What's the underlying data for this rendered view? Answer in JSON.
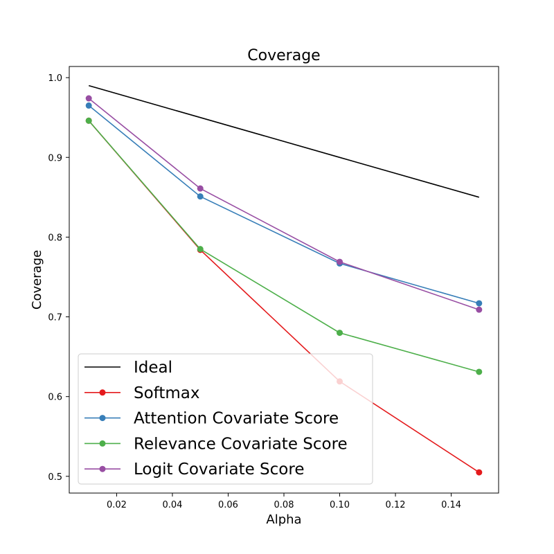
{
  "chart_data": {
    "type": "line",
    "title": "Coverage",
    "xlabel": "Alpha",
    "ylabel": "Coverage",
    "xlim": [
      0.003,
      0.157
    ],
    "ylim": [
      0.479,
      1.014
    ],
    "xticks": [
      0.02,
      0.04,
      0.06,
      0.08,
      0.1,
      0.12,
      0.14
    ],
    "xtick_labels": [
      "0.02",
      "0.04",
      "0.06",
      "0.08",
      "0.10",
      "0.12",
      "0.14"
    ],
    "yticks": [
      0.5,
      0.6,
      0.7,
      0.8,
      0.9,
      1.0
    ],
    "ytick_labels": [
      "0.5",
      "0.6",
      "0.7",
      "0.8",
      "0.9",
      "1.0"
    ],
    "grid": false,
    "legend_position": "lower-left",
    "x": [
      0.01,
      0.05,
      0.1,
      0.15
    ],
    "series": [
      {
        "name": "Ideal",
        "values": [
          0.99,
          0.95,
          0.9,
          0.85
        ],
        "color": "#000000",
        "markers": false
      },
      {
        "name": "Softmax",
        "values": [
          0.946,
          0.784,
          0.619,
          0.505
        ],
        "color": "#e41a1c",
        "markers": true
      },
      {
        "name": "Attention Covariate Score",
        "values": [
          0.965,
          0.851,
          0.767,
          0.717
        ],
        "color": "#377eb8",
        "markers": true
      },
      {
        "name": "Relevance Covariate Score",
        "values": [
          0.946,
          0.785,
          0.68,
          0.631
        ],
        "color": "#4daf4a",
        "markers": true
      },
      {
        "name": "Logit Covariate Score",
        "values": [
          0.974,
          0.861,
          0.769,
          0.709
        ],
        "color": "#984ea3",
        "markers": true
      }
    ]
  }
}
